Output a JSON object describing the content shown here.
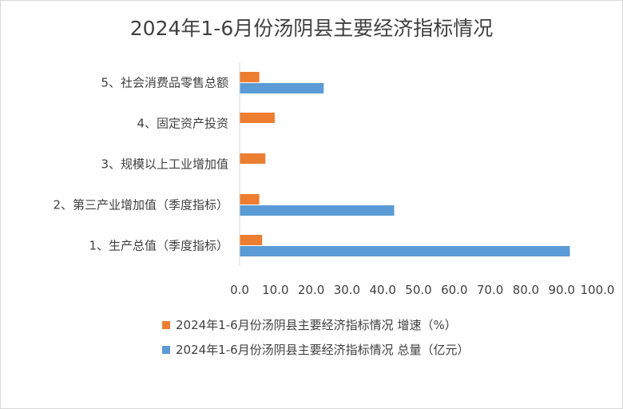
{
  "chart_data": {
    "type": "bar",
    "orientation": "horizontal",
    "title": "2024年1-6月份汤阴县主要经济指标情况",
    "categories": [
      "1、生产总值（季度指标）",
      "2、第三产业增加值（季度指标）",
      "3、规模以上工业增加值",
      "4、固定资产投资",
      "5、社会消费品零售总额"
    ],
    "series": [
      {
        "name": "2024年1-6月份汤阴县主要经济指标情况 增速（%）",
        "color": "#ed7d31",
        "values": [
          6.3,
          5.5,
          7.2,
          9.8,
          5.5
        ]
      },
      {
        "name": "2024年1-6月份汤阴县主要经济指标情况 总量（亿元）",
        "color": "#5b9bd5",
        "values": [
          92.3,
          43.2,
          null,
          null,
          23.5
        ]
      }
    ],
    "xlim": [
      0,
      100
    ],
    "xticks": [
      "0.0",
      "10.0",
      "20.0",
      "30.0",
      "40.0",
      "50.0",
      "60.0",
      "70.0",
      "80.0",
      "90.0",
      "100.0"
    ],
    "grid": false,
    "legend_position": "bottom"
  }
}
